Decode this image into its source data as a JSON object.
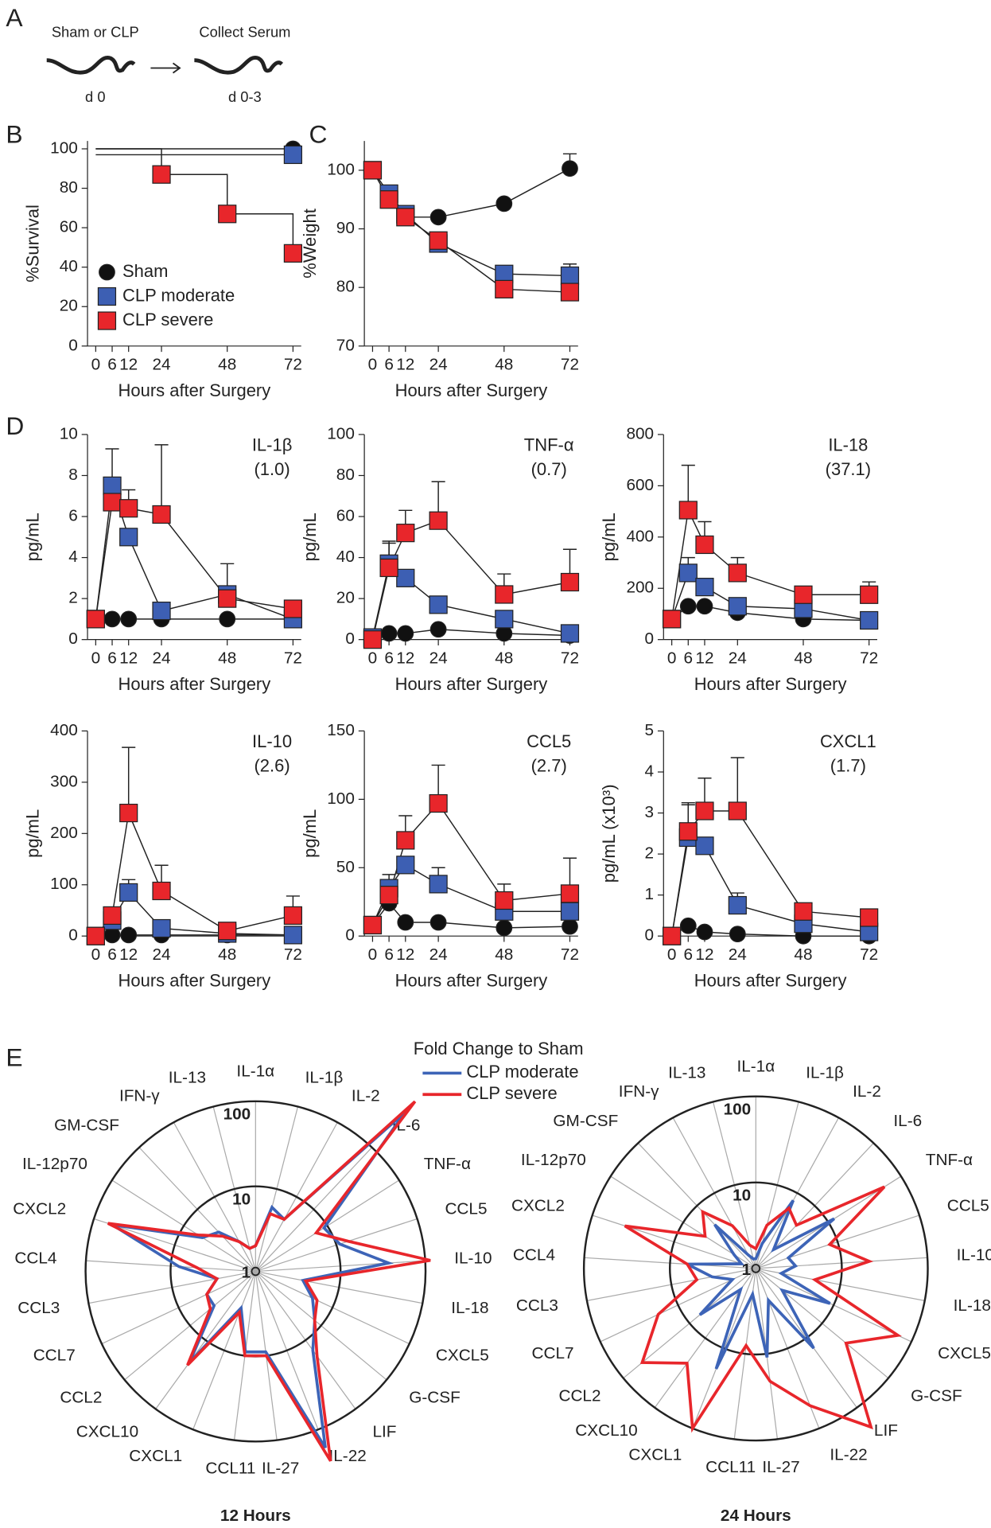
{
  "panels": [
    "A",
    "B",
    "C",
    "D",
    "E"
  ],
  "diagram": {
    "steps": [
      {
        "label": "Sham or CLP",
        "day": "d 0"
      },
      {
        "label": "Collect Serum",
        "day": "d 0-3"
      }
    ]
  },
  "chart_data": [
    {
      "type": "line",
      "step": true,
      "ylabel": "%Survival",
      "xlabel": "Hours after Surgery",
      "xlim": [
        -3,
        75
      ],
      "xticks": [
        0,
        6,
        12,
        24,
        48,
        72
      ],
      "ylim": [
        0,
        104
      ],
      "yticks": [
        0,
        20,
        40,
        60,
        80,
        100
      ],
      "legend": "lower left",
      "series": [
        {
          "name": "Sham",
          "color": "#111111",
          "marker": "circle",
          "x": [
            0,
            72
          ],
          "values": [
            100,
            100
          ]
        },
        {
          "name": "CLP moderate",
          "color": "#3d5fb3",
          "marker": "square",
          "x": [
            0,
            72
          ],
          "values": [
            97,
            97
          ]
        },
        {
          "name": "CLP severe",
          "color": "#e8262b",
          "marker": "square",
          "x": [
            0,
            24,
            48,
            72
          ],
          "values": [
            100,
            87,
            67,
            47
          ]
        }
      ]
    },
    {
      "type": "line",
      "ylabel": "%Weight",
      "xlabel": "Hours after Surgery",
      "xlim": [
        -3,
        75
      ],
      "xticks": [
        0,
        6,
        12,
        24,
        48,
        72
      ],
      "ylim": [
        70,
        105
      ],
      "yticks": [
        70,
        80,
        90,
        100
      ],
      "x": [
        0,
        6,
        12,
        24,
        48,
        72
      ],
      "series": [
        {
          "color": "#111111",
          "marker": "circle",
          "values": [
            100,
            95,
            92,
            92,
            94.3,
            100.3
          ],
          "errors": [
            null,
            null,
            null,
            null,
            null,
            2.5
          ]
        },
        {
          "color": "#3d5fb3",
          "marker": "square",
          "values": [
            100,
            96,
            92.5,
            87.5,
            82.3,
            82
          ],
          "errors": [
            null,
            null,
            null,
            null,
            null,
            2
          ]
        },
        {
          "color": "#e8262b",
          "marker": "square",
          "values": [
            100,
            95,
            92,
            88,
            79.7,
            79.2
          ],
          "errors": [
            null,
            null,
            null,
            null,
            null,
            2.7
          ]
        }
      ]
    },
    {
      "type": "line",
      "title": "IL-1β",
      "subtitle": "(1.0)",
      "ylabel": "pg/mL",
      "xlabel": "Hours after Surgery",
      "xlim": [
        -3,
        75
      ],
      "xticks": [
        0,
        6,
        12,
        24,
        48,
        72
      ],
      "ylim": [
        0,
        10
      ],
      "yticks": [
        0,
        2,
        4,
        6,
        8,
        10
      ],
      "x": [
        0,
        6,
        12,
        24,
        48,
        72
      ],
      "series": [
        {
          "color": "#111111",
          "marker": "circle",
          "values": [
            1,
            1,
            1,
            1,
            1,
            1
          ]
        },
        {
          "color": "#3d5fb3",
          "marker": "square",
          "values": [
            1,
            7.5,
            5,
            1.4,
            2.2,
            1
          ],
          "errors": [
            null,
            1.8,
            0.4,
            null,
            1.5,
            0.6
          ]
        },
        {
          "color": "#e8262b",
          "marker": "square",
          "values": [
            1,
            6.7,
            6.4,
            6.1,
            2,
            1.5
          ],
          "errors": [
            null,
            0.5,
            0.9,
            3.4,
            0.3,
            0.4
          ]
        }
      ]
    },
    {
      "type": "line",
      "title": "TNF-α",
      "subtitle": "(0.7)",
      "ylabel": "pg/mL",
      "xlabel": "Hours after Surgery",
      "xlim": [
        -3,
        75
      ],
      "xticks": [
        0,
        6,
        12,
        24,
        48,
        72
      ],
      "ylim": [
        0,
        100
      ],
      "yticks": [
        0,
        20,
        40,
        60,
        80,
        100
      ],
      "x": [
        0,
        6,
        12,
        24,
        48,
        72
      ],
      "series": [
        {
          "color": "#111111",
          "marker": "circle",
          "values": [
            0,
            3,
            3,
            5,
            3,
            2
          ]
        },
        {
          "color": "#3d5fb3",
          "marker": "square",
          "values": [
            1,
            37,
            30,
            17,
            10,
            3
          ],
          "errors": [
            null,
            10,
            4,
            null,
            null,
            null
          ]
        },
        {
          "color": "#e8262b",
          "marker": "square",
          "values": [
            0,
            35,
            52,
            58,
            22,
            28
          ],
          "errors": [
            null,
            13,
            11,
            19,
            10,
            16
          ]
        }
      ]
    },
    {
      "type": "line",
      "title": "IL-18",
      "subtitle": "(37.1)",
      "ylabel": "pg/mL",
      "xlabel": "Hours after Surgery",
      "xlim": [
        -3,
        75
      ],
      "xticks": [
        0,
        6,
        12,
        24,
        48,
        72
      ],
      "ylim": [
        0,
        800
      ],
      "yticks": [
        0,
        200,
        400,
        600,
        800
      ],
      "x": [
        0,
        6,
        12,
        24,
        48,
        72
      ],
      "series": [
        {
          "color": "#111111",
          "marker": "circle",
          "values": [
            80,
            130,
            130,
            105,
            80,
            75
          ]
        },
        {
          "color": "#3d5fb3",
          "marker": "square",
          "values": [
            80,
            260,
            205,
            130,
            120,
            75
          ],
          "errors": [
            null,
            60,
            null,
            null,
            null,
            null
          ]
        },
        {
          "color": "#e8262b",
          "marker": "square",
          "values": [
            80,
            505,
            370,
            260,
            175,
            175
          ],
          "errors": [
            null,
            175,
            90,
            60,
            null,
            50
          ]
        }
      ]
    },
    {
      "type": "line",
      "title": "IL-10",
      "subtitle": "(2.6)",
      "ylabel": "pg/mL",
      "xlabel": "Hours after Surgery",
      "xlim": [
        -3,
        75
      ],
      "xticks": [
        0,
        6,
        12,
        24,
        48,
        72
      ],
      "ylim": [
        0,
        400
      ],
      "yticks": [
        0,
        100,
        200,
        300,
        400
      ],
      "x": [
        0,
        6,
        12,
        24,
        48,
        72
      ],
      "series": [
        {
          "color": "#111111",
          "marker": "circle",
          "values": [
            0,
            2,
            2,
            2,
            2,
            2
          ]
        },
        {
          "color": "#3d5fb3",
          "marker": "square",
          "values": [
            0,
            30,
            85,
            15,
            5,
            2
          ],
          "errors": [
            null,
            null,
            25,
            null,
            null,
            null
          ]
        },
        {
          "color": "#e8262b",
          "marker": "square",
          "values": [
            0,
            40,
            240,
            88,
            10,
            40
          ],
          "errors": [
            null,
            null,
            128,
            50,
            null,
            38
          ]
        }
      ]
    },
    {
      "type": "line",
      "title": "CCL5",
      "subtitle": "(2.7)",
      "ylabel": "pg/mL",
      "xlabel": "Hours after Surgery",
      "xlim": [
        -3,
        75
      ],
      "xticks": [
        0,
        6,
        12,
        24,
        48,
        72
      ],
      "ylim": [
        0,
        150
      ],
      "yticks": [
        0,
        50,
        100,
        150
      ],
      "x": [
        0,
        6,
        12,
        24,
        48,
        72
      ],
      "series": [
        {
          "color": "#111111",
          "marker": "circle",
          "values": [
            8,
            24,
            10,
            10,
            6,
            7
          ]
        },
        {
          "color": "#3d5fb3",
          "marker": "square",
          "values": [
            8,
            35,
            52,
            38,
            18,
            18
          ],
          "errors": [
            null,
            10,
            null,
            12,
            null,
            null
          ]
        },
        {
          "color": "#e8262b",
          "marker": "square",
          "values": [
            8,
            30,
            70,
            97,
            26,
            31
          ],
          "errors": [
            null,
            null,
            18,
            28,
            12,
            26
          ]
        }
      ]
    },
    {
      "type": "line",
      "title": "CXCL1",
      "subtitle": "(1.7)",
      "ylabel": "pg/mL (x10³)",
      "xlabel": "Hours after Surgery",
      "xlim": [
        -3,
        75
      ],
      "xticks": [
        0,
        6,
        12,
        24,
        48,
        72
      ],
      "ylim": [
        0,
        5
      ],
      "yticks": [
        0,
        1,
        2,
        3,
        4,
        5
      ],
      "x": [
        0,
        6,
        12,
        24,
        48,
        72
      ],
      "series": [
        {
          "color": "#111111",
          "marker": "circle",
          "values": [
            0,
            0.25,
            0.1,
            0.05,
            0,
            0
          ]
        },
        {
          "color": "#3d5fb3",
          "marker": "square",
          "values": [
            0,
            2.4,
            2.2,
            0.75,
            0.3,
            0.1
          ],
          "errors": [
            null,
            0.8,
            null,
            0.3,
            null,
            null
          ]
        },
        {
          "color": "#e8262b",
          "marker": "square",
          "values": [
            0,
            2.55,
            3.05,
            3.05,
            0.6,
            0.45
          ],
          "errors": [
            null,
            0.7,
            0.8,
            1.3,
            0.2,
            null
          ]
        }
      ]
    },
    {
      "type": "radar",
      "title": "12 Hours",
      "log": true,
      "rlim": [
        1,
        100
      ],
      "rticks": [
        1,
        10,
        100
      ],
      "legend_title": "Fold Change to Sham",
      "categories": [
        "IL-1α",
        "IL-1β",
        "IL-2",
        "IL-6",
        "TNF-α",
        "CCL5",
        "IL-10",
        "IL-18",
        "CXCL5",
        "G-CSF",
        "LIF",
        "IL-22",
        "IL-27",
        "CCL11",
        "CXCL1",
        "CXCL10",
        "CCL2",
        "CCL7",
        "CCL3",
        "CCL4",
        "CXCL2",
        "IL-12p70",
        "GM-CSF",
        "IFN-γ",
        "IL-13"
      ],
      "series": [
        {
          "name": "CLP moderate",
          "color": "#3d64b7",
          "values": [
            2,
            6,
            5,
            370,
            9,
            11,
            37,
            3.7,
            5.5,
            8,
            14,
            170,
            9,
            9,
            2.9,
            21,
            4.3,
            4.3,
            2.9,
            8,
            59,
            5.5,
            4.3,
            2.5,
            1.9
          ]
        },
        {
          "name": "CLP severe",
          "color": "#e8262b",
          "values": [
            2,
            5,
            5,
            550,
            7,
            14,
            115,
            4,
            6.3,
            8,
            17,
            250,
            10,
            10,
            3.3,
            23,
            4.9,
            4.3,
            2.9,
            4.9,
            67,
            6.3,
            3.7,
            2.5,
            1.9
          ]
        }
      ]
    },
    {
      "type": "radar",
      "title": "24 Hours",
      "log": true,
      "rlim": [
        1,
        100
      ],
      "rticks": [
        1,
        10,
        100
      ],
      "categories": [
        "IL-1α",
        "IL-1β",
        "IL-2",
        "IL-6",
        "TNF-α",
        "CCL5",
        "IL-10",
        "IL-18",
        "CXCL5",
        "G-CSF",
        "LIF",
        "IL-22",
        "IL-27",
        "CCL11",
        "CXCL1",
        "CXCL10",
        "CCL2",
        "CCL7",
        "CCL3",
        "CCL4",
        "CXCL2",
        "IL-12p70",
        "GM-CSF",
        "IFN-γ",
        "IL-13"
      ],
      "series": [
        {
          "color": "#3d64b7",
          "values": [
            1.3,
            2,
            8,
            2,
            12,
            2.5,
            2.9,
            2,
            9,
            2.5,
            14,
            2.5,
            11,
            2,
            18,
            2,
            7,
            2,
            3.3,
            6.3,
            1.5,
            2,
            5,
            1.5,
            1.3
          ]
        },
        {
          "color": "#e8262b",
          "values": [
            1.7,
            3.3,
            6.3,
            4.9,
            59,
            8,
            21,
            5,
            67,
            23,
            190,
            52,
            21,
            8,
            100,
            23,
            52,
            18,
            5,
            6.3,
            40,
            5,
            8,
            3.7,
            1.9
          ]
        }
      ]
    }
  ]
}
